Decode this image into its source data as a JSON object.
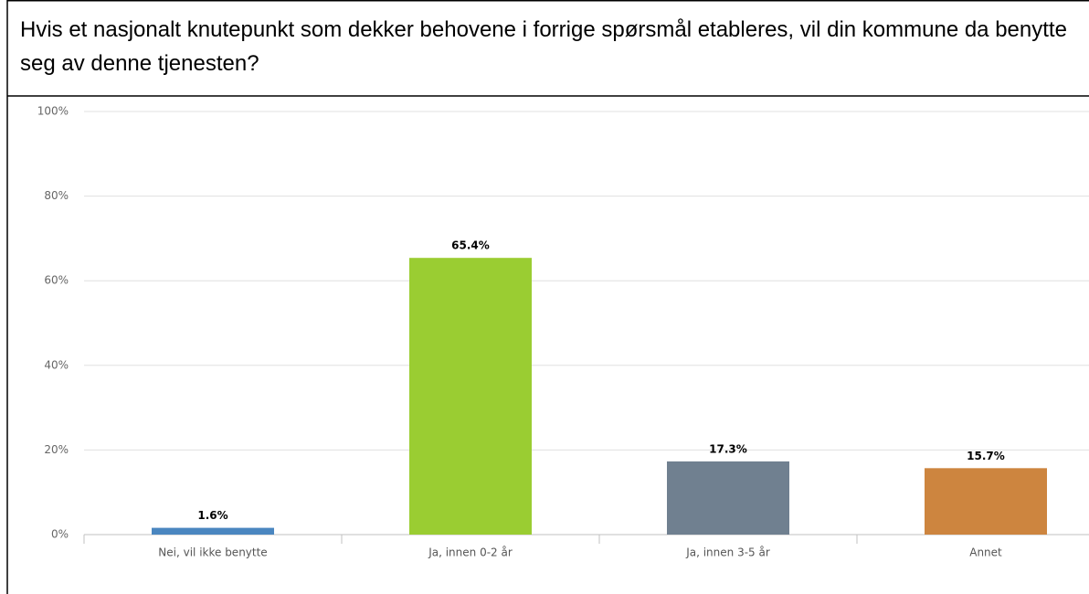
{
  "chart_data": {
    "type": "bar",
    "title": "Hvis et nasjonalt knutepunkt som dekker behovene i forrige spørsmål etableres, vil din kommune da benytte seg av denne tjenesten?",
    "categories": [
      "Nei, vil ikke benytte",
      "Ja, innen 0-2 år",
      "Ja, innen 3-5 år",
      "Annet"
    ],
    "values": [
      1.6,
      65.4,
      17.3,
      15.7
    ],
    "value_labels": [
      "1.6%",
      "65.4%",
      "17.3%",
      "15.7%"
    ],
    "colors": [
      "#4a86c0",
      "#9acd32",
      "#708090",
      "#cd853f"
    ],
    "ylim": [
      0,
      100
    ],
    "yticks": [
      {
        "value": 0,
        "label": "0%"
      },
      {
        "value": 20,
        "label": "20%"
      },
      {
        "value": 40,
        "label": "40%"
      },
      {
        "value": 60,
        "label": "60%"
      },
      {
        "value": 80,
        "label": "80%"
      },
      {
        "value": 100,
        "label": "100%"
      }
    ],
    "grid": true
  }
}
